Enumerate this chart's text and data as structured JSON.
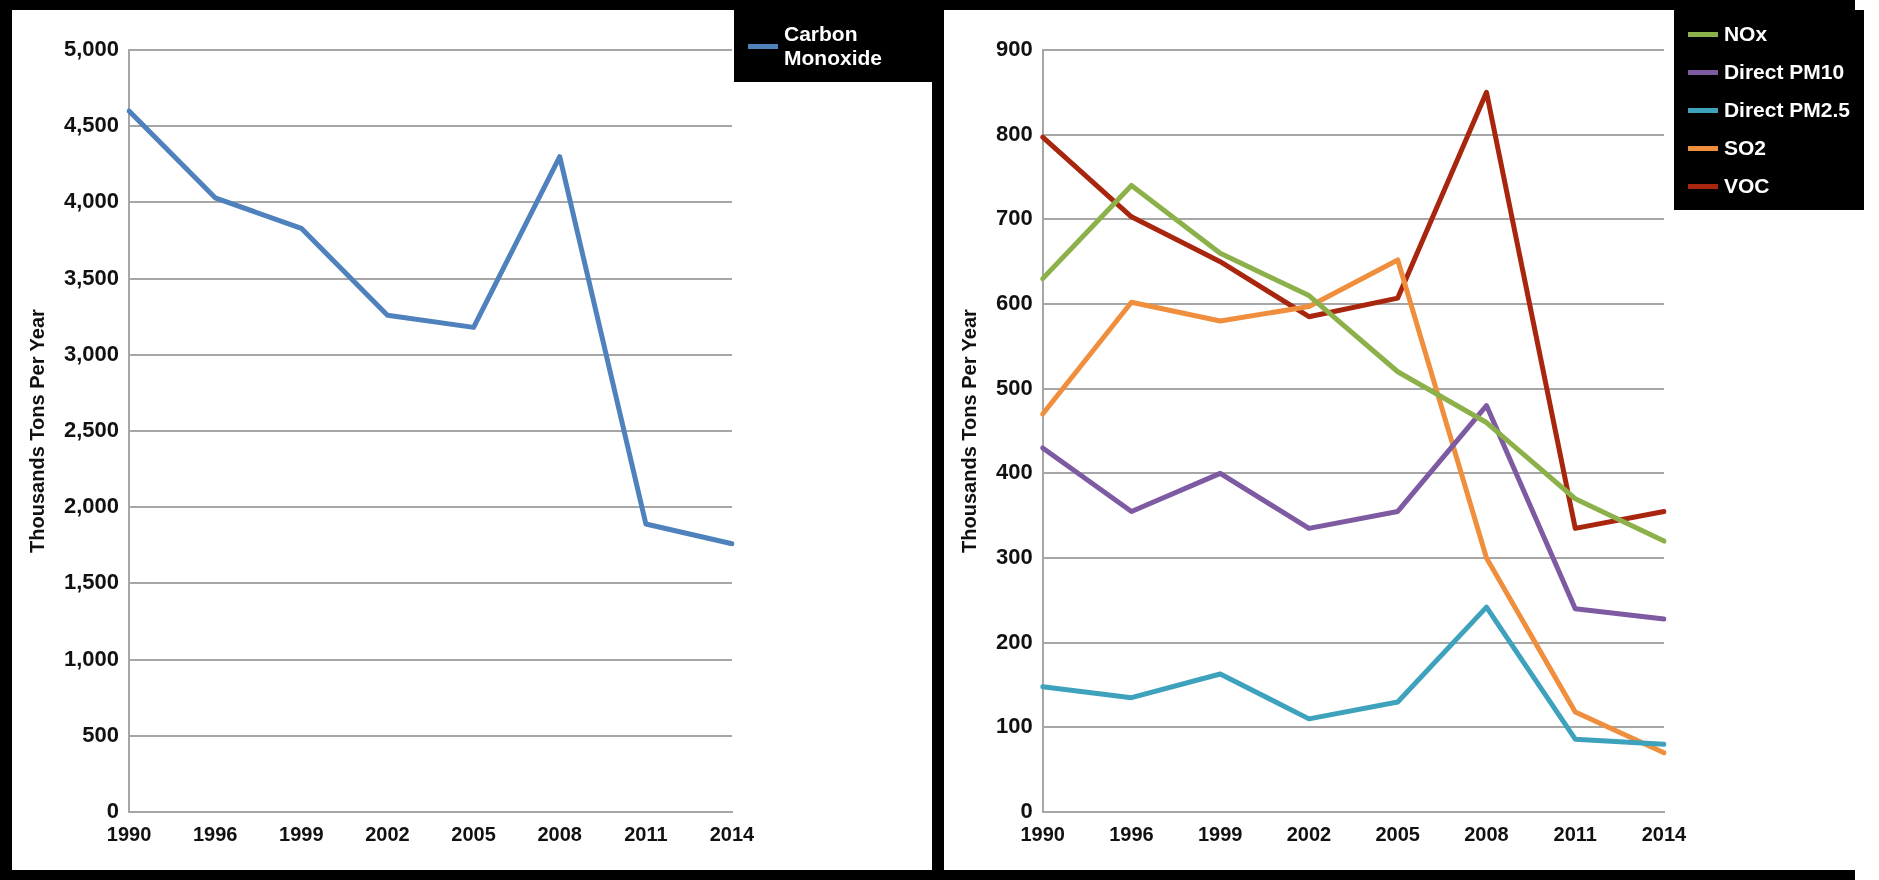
{
  "chart_data": [
    {
      "type": "line",
      "ylabel": "Thousands Tons Per Year",
      "categories": [
        "1990",
        "1996",
        "1999",
        "2002",
        "2005",
        "2008",
        "2011",
        "2014"
      ],
      "series": [
        {
          "name": "Carbon Monoxide",
          "color": "#4f81bd",
          "values": [
            4600,
            4030,
            3830,
            3260,
            3180,
            4300,
            1890,
            1760
          ]
        }
      ],
      "ylim": [
        0,
        5000
      ],
      "yticks": [
        0,
        {
          "value": 500,
          "label": "500"
        },
        {
          "value": 1000,
          "label": "1,000"
        },
        {
          "value": 1500,
          "label": "1,500"
        },
        {
          "value": 2000,
          "label": "2,000"
        },
        {
          "value": 2500,
          "label": "2,500"
        },
        {
          "value": 3000,
          "label": "3,000"
        },
        {
          "value": 3500,
          "label": "3,500"
        },
        {
          "value": 4000,
          "label": "4,000"
        },
        {
          "value": 4500,
          "label": "4,500"
        },
        {
          "value": 5000,
          "label": "5,000"
        }
      ],
      "grid": "y",
      "legend": "top right",
      "marker": "none",
      "line_style": "solid"
    },
    {
      "type": "line",
      "ylabel": "Thousands Tons Per Year",
      "categories": [
        "1990",
        "1996",
        "1999",
        "2002",
        "2005",
        "2008",
        "2011",
        "2014"
      ],
      "series": [
        {
          "name": "NOx",
          "color": "#8db14a",
          "values": [
            630,
            740,
            660,
            610,
            520,
            460,
            370,
            320
          ]
        },
        {
          "name": "Direct PM10",
          "color": "#7d5aa2",
          "values": [
            430,
            355,
            400,
            335,
            355,
            480,
            240,
            228
          ]
        },
        {
          "name": "Direct PM2.5",
          "color": "#3fa2bc",
          "values": [
            148,
            135,
            163,
            110,
            130,
            242,
            86,
            80
          ]
        },
        {
          "name": "SO2",
          "color": "#ef8f3e",
          "values": [
            470,
            602,
            580,
            597,
            652,
            300,
            118,
            70
          ]
        },
        {
          "name": "VOC",
          "color": "#a8260e",
          "values": [
            797,
            703,
            650,
            585,
            607,
            850,
            335,
            355
          ]
        }
      ],
      "ylim": [
        0,
        900
      ],
      "yticks": [
        0,
        100,
        200,
        300,
        400,
        500,
        600,
        700,
        800,
        900
      ],
      "grid": "y",
      "legend": "top right",
      "marker": "none",
      "line_style": "solid"
    }
  ]
}
